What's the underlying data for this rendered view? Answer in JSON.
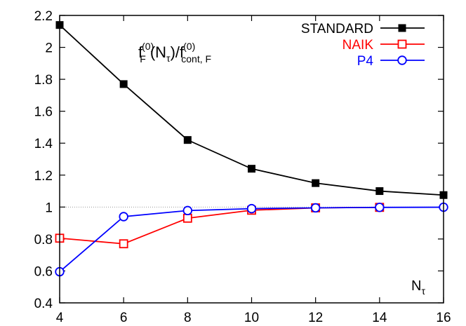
{
  "chart_data": {
    "type": "line",
    "title": "",
    "xlabel": "",
    "ylabel": "",
    "annotation": {
      "f1": "f",
      "sub1": "F",
      "sup1": "(0)",
      "arg": "(N",
      "argsub": "τ",
      "argclose": ")/f",
      "sup2": "(0)",
      "sub2": "cont, F"
    },
    "x_axis_label": {
      "main": "N",
      "sub": "τ"
    },
    "xlim": [
      4,
      16
    ],
    "ylim": [
      0.4,
      2.2
    ],
    "xticks": [
      4,
      6,
      8,
      10,
      12,
      14,
      16
    ],
    "yticks": [
      0.4,
      0.6,
      0.8,
      1,
      1.2,
      1.4,
      1.6,
      1.8,
      2,
      2.2
    ],
    "reference_line": 1,
    "grid": false,
    "legend_position": "top-right",
    "series": [
      {
        "name": "STANDARD",
        "color": "#000000",
        "marker": "filled-square",
        "x": [
          4,
          6,
          8,
          10,
          12,
          14,
          16
        ],
        "y": [
          2.14,
          1.77,
          1.42,
          1.24,
          1.15,
          1.1,
          1.075
        ]
      },
      {
        "name": "NAIK",
        "color": "#ff0000",
        "marker": "open-square",
        "x": [
          4,
          6,
          8,
          10,
          12,
          14
        ],
        "y": [
          0.805,
          0.77,
          0.93,
          0.98,
          0.995,
          0.998
        ]
      },
      {
        "name": "P4",
        "color": "#0000ff",
        "marker": "open-circle",
        "x": [
          4,
          6,
          8,
          10,
          12,
          14,
          16
        ],
        "y": [
          0.595,
          0.94,
          0.978,
          0.99,
          0.995,
          0.998,
          0.999
        ]
      }
    ]
  }
}
